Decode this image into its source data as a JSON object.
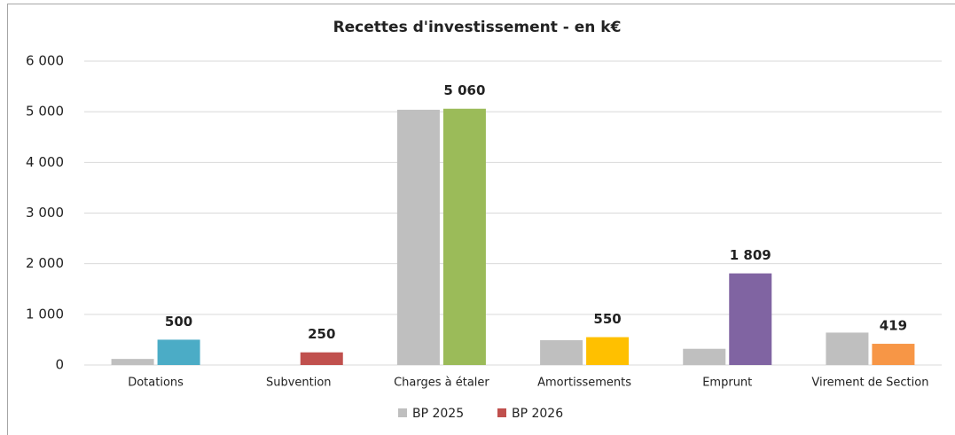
{
  "chart_data": {
    "type": "bar",
    "title": "Recettes d'investissement - en k€",
    "categories": [
      "Dotations",
      "Subvention",
      "Charges à étaler",
      "Amortissements",
      "Emprunt",
      "Virement de Section"
    ],
    "series": [
      {
        "name": "BP 2025",
        "color": "#bfbfbf",
        "values": [
          120,
          0,
          5040,
          490,
          320,
          640
        ]
      },
      {
        "name": "BP 2026",
        "color": "#c0504d",
        "point_colors": [
          "#4bacc6",
          "#c0504d",
          "#9bbb59",
          "#ffc000",
          "#8064a2",
          "#f79646"
        ],
        "values": [
          500,
          250,
          5060,
          550,
          1809,
          419
        ],
        "value_labels": [
          "500",
          "250",
          "5 060",
          "550",
          "1 809",
          "419"
        ]
      }
    ],
    "ylim": [
      0,
      6000
    ],
    "yticks": [
      0,
      {
        "value": 1000,
        "label": "1 000"
      },
      {
        "value": 2000,
        "label": "2 000"
      },
      {
        "value": 3000,
        "label": "3 000"
      },
      {
        "value": 4000,
        "label": "4 000"
      },
      {
        "value": 5000,
        "label": "5 000"
      },
      {
        "value": 6000,
        "label": "6 000"
      }
    ],
    "grid": true,
    "legend": "bottom"
  }
}
